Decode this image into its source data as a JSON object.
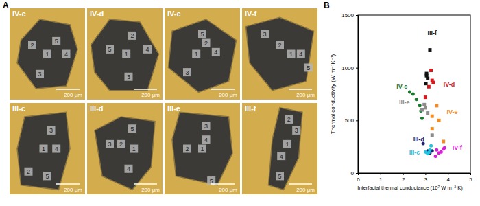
{
  "photos": {
    "label": "A",
    "images": [
      {
        "label": "IV-c",
        "spots": [
          2,
          5,
          1,
          4,
          3
        ],
        "scale_bar": "200 μm"
      },
      {
        "label": "IV-d",
        "spots": [
          5,
          2,
          1,
          4,
          3
        ],
        "scale_bar": "200 μm"
      },
      {
        "label": "IV-e",
        "spots": [
          5,
          1,
          4,
          2,
          3
        ],
        "scale_bar": "200 μm"
      },
      {
        "label": "IV-f",
        "spots": [
          3,
          2,
          1,
          4,
          5
        ],
        "scale_bar": "200 μm"
      },
      {
        "label": "III-c",
        "spots": [
          3,
          1,
          4,
          2,
          5
        ],
        "scale_bar": "200 μm"
      },
      {
        "label": "III-d",
        "spots": [
          5,
          3,
          2,
          1,
          4
        ],
        "scale_bar": "200 μm"
      },
      {
        "label": "III-e",
        "spots": [
          3,
          4,
          2,
          1,
          5
        ],
        "scale_bar": "200 μm"
      },
      {
        "label": "III-f",
        "spots": [
          2,
          3,
          1,
          4,
          5
        ],
        "scale_bar": "200 μm"
      }
    ]
  },
  "chart_data": {
    "type": "scatter",
    "title": "B",
    "x_label": "Interfacial thermal conductance (10⁷ W m⁻² K)",
    "y_label": "Thermal conductivity (W m⁻¹K⁻¹)",
    "xlim": [
      0,
      5
    ],
    "xticks": [
      0,
      1,
      2,
      3,
      4,
      5
    ],
    "ylim": [
      0,
      1500
    ],
    "yticks": [
      0,
      500,
      1000,
      1500
    ],
    "series": [
      {
        "name": "III-f",
        "color": "#111111",
        "marker": "square",
        "x": [
          3.2,
          3.05,
          3.05,
          3.1,
          3.02
        ],
        "values": [
          1170,
          945,
          925,
          900,
          850
        ]
      },
      {
        "name": "IV-d",
        "color": "#d7191c",
        "marker": "square",
        "x": [
          3.25,
          3.3,
          3.35,
          3.15,
          3.0
        ],
        "values": [
          975,
          880,
          860,
          820,
          720
        ]
      },
      {
        "name": "IV-c",
        "color": "#1a7a2e",
        "marker": "circle",
        "x": [
          2.3,
          2.45,
          2.6,
          2.75,
          2.8,
          2.85
        ],
        "values": [
          770,
          750,
          700,
          640,
          590,
          520
        ]
      },
      {
        "name": "III-e",
        "color": "#8c8c8c",
        "marker": "square",
        "x": [
          2.95,
          3.0,
          2.85,
          3.1,
          3.3
        ],
        "values": [
          650,
          620,
          600,
          570,
          360
        ]
      },
      {
        "name": "IV-e",
        "color": "#f08c28",
        "marker": "square",
        "x": [
          3.5,
          3.3,
          3.6,
          3.8,
          3.3
        ],
        "values": [
          640,
          540,
          500,
          300,
          420
        ]
      },
      {
        "name": "III-d",
        "color": "#1c1f6e",
        "marker": "circle",
        "x": [
          2.9,
          3.05,
          3.1,
          3.2,
          3.3
        ],
        "values": [
          280,
          200,
          210,
          190,
          210
        ]
      },
      {
        "name": "III-c",
        "color": "#22c4e0",
        "marker": "circle",
        "x": [
          3.0,
          3.1,
          3.15,
          3.2,
          3.25
        ],
        "values": [
          200,
          185,
          195,
          220,
          260
        ]
      },
      {
        "name": "IV-f",
        "color": "#d61fd6",
        "marker": "circle",
        "x": [
          3.45,
          3.5,
          3.6,
          3.7,
          3.8,
          3.85
        ],
        "values": [
          160,
          220,
          190,
          200,
          230,
          240
        ]
      }
    ]
  }
}
